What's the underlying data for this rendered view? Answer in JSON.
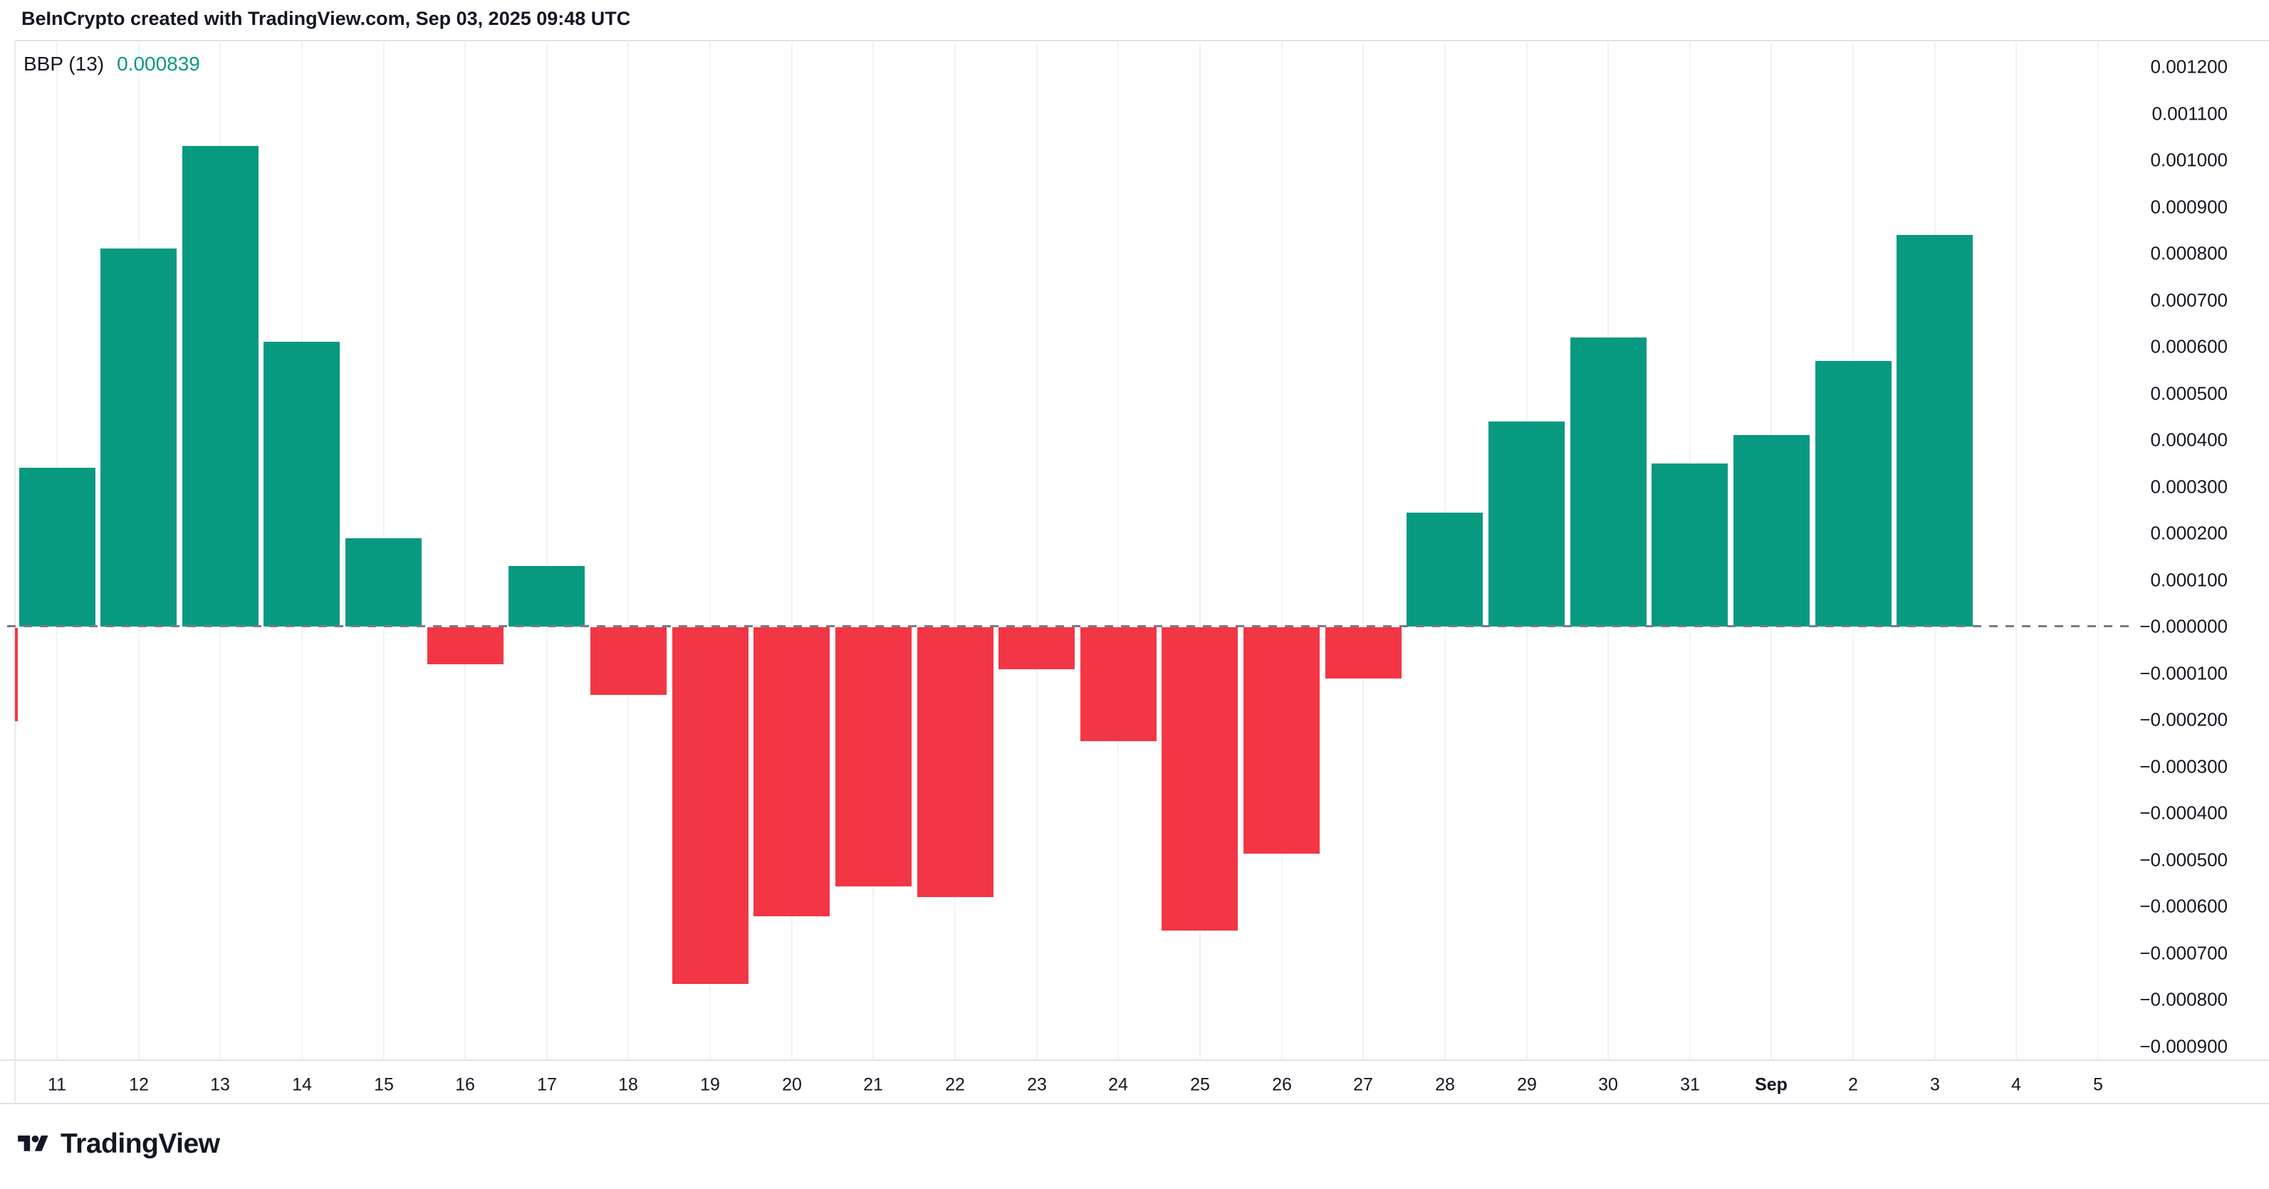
{
  "header": {
    "title": "BeInCrypto created with TradingView.com, Sep 03, 2025 09:48 UTC"
  },
  "indicator": {
    "name": "BBP (13)",
    "value": "0.000839"
  },
  "logo": {
    "text": "TradingView"
  },
  "colors": {
    "positive": "#089981",
    "negative": "#F23645",
    "text": "#131722",
    "indicator_value": "#089981",
    "zero_line": "#787B86",
    "grid": "#F0F2F7",
    "border": "#E0E3EB"
  },
  "chart_data": {
    "type": "bar",
    "title": "BBP (13) — Bull Bear Power histogram",
    "series_name": "BBP (13)",
    "last_value": 0.000839,
    "categories": [
      "11",
      "12",
      "13",
      "14",
      "15",
      "16",
      "17",
      "18",
      "19",
      "20",
      "21",
      "22",
      "23",
      "24",
      "25",
      "26",
      "27",
      "28",
      "29",
      "30",
      "31",
      "Sep",
      "2",
      "3",
      "4",
      "5"
    ],
    "bold_categories": [
      "Sep"
    ],
    "values": [
      0.00034,
      0.00081,
      0.00103,
      0.00061,
      0.00019,
      -8e-05,
      0.00013,
      -0.000145,
      -0.000765,
      -0.00062,
      -0.000555,
      -0.000578,
      -9e-05,
      -0.000245,
      -0.00065,
      -0.000485,
      -0.00011,
      0.000245,
      0.00044,
      0.00062,
      0.00035,
      0.00041,
      0.00057,
      0.000839,
      null,
      null
    ],
    "clipped_left_edge_value": -0.0002,
    "xlabel": "",
    "ylabel": "",
    "ylim": [
      -0.00095,
      0.00125
    ],
    "grid": "vertical-only",
    "legend_position": "none",
    "zero_line_style": "dashed",
    "y_ticks": [
      {
        "label": "0.001200",
        "value": 0.0012
      },
      {
        "label": "0.001100",
        "value": 0.0011
      },
      {
        "label": "0.001000",
        "value": 0.001
      },
      {
        "label": "0.000900",
        "value": 0.0009
      },
      {
        "label": "0.000800",
        "value": 0.0008
      },
      {
        "label": "0.000700",
        "value": 0.0007
      },
      {
        "label": "0.000600",
        "value": 0.0006
      },
      {
        "label": "0.000500",
        "value": 0.0005
      },
      {
        "label": "0.000400",
        "value": 0.0004
      },
      {
        "label": "0.000300",
        "value": 0.0003
      },
      {
        "label": "0.000200",
        "value": 0.0002
      },
      {
        "label": "0.000100",
        "value": 0.0001
      },
      {
        "label": "−0.000000",
        "value": 0.0
      },
      {
        "label": "−0.000100",
        "value": -0.0001
      },
      {
        "label": "−0.000200",
        "value": -0.0002
      },
      {
        "label": "−0.000300",
        "value": -0.0003
      },
      {
        "label": "−0.000400",
        "value": -0.0004
      },
      {
        "label": "−0.000500",
        "value": -0.0005
      },
      {
        "label": "−0.000600",
        "value": -0.0006
      },
      {
        "label": "−0.000700",
        "value": -0.0007
      },
      {
        "label": "−0.000800",
        "value": -0.0008
      },
      {
        "label": "−0.000900",
        "value": -0.0009
      }
    ]
  }
}
